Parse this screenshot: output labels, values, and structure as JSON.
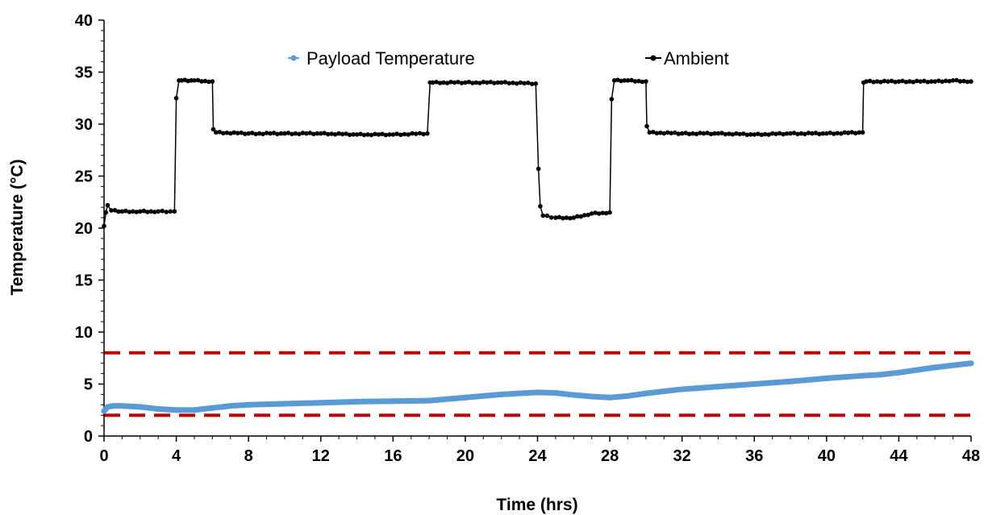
{
  "chart_data": {
    "type": "line",
    "xlabel": "Time (hrs)",
    "ylabel": "Temperature (°C)",
    "xlim": [
      0,
      48
    ],
    "ylim": [
      0,
      40
    ],
    "x_ticks": [
      "0",
      "4",
      "8",
      "12",
      "16",
      "20",
      "24",
      "28",
      "32",
      "36",
      "40",
      "44",
      "48"
    ],
    "y_ticks": [
      "0",
      "5",
      "10",
      "15",
      "20",
      "25",
      "30",
      "35",
      "40"
    ],
    "grid": false,
    "legend_position": "top",
    "reference_lines": [
      {
        "y": 8,
        "color": "#c00000",
        "style": "dashed"
      },
      {
        "y": 2,
        "color": "#c00000",
        "style": "dashed"
      }
    ],
    "series": [
      {
        "name": "Payload Temperature",
        "color": "#5b9bd5",
        "marker": "dot",
        "x": [
          0,
          0.2,
          0.5,
          1,
          2,
          3,
          4,
          5,
          6,
          7,
          8,
          10,
          12,
          14,
          16,
          18,
          20,
          22,
          24,
          25,
          26,
          27,
          28,
          29,
          30,
          32,
          34,
          36,
          38,
          40,
          42,
          43,
          44,
          46,
          48
        ],
        "y": [
          2.4,
          2.8,
          2.9,
          2.9,
          2.8,
          2.6,
          2.5,
          2.5,
          2.7,
          2.9,
          3.0,
          3.1,
          3.2,
          3.3,
          3.35,
          3.4,
          3.7,
          4.0,
          4.2,
          4.15,
          3.95,
          3.8,
          3.7,
          3.85,
          4.1,
          4.5,
          4.75,
          5.0,
          5.25,
          5.55,
          5.8,
          5.9,
          6.1,
          6.6,
          7.0
        ]
      },
      {
        "name": "Ambient",
        "color": "#000000",
        "marker": "circle",
        "x": [
          0,
          0.1,
          0.2,
          0.4,
          1,
          2,
          3,
          3.9,
          4.0,
          4.15,
          4.3,
          5,
          6,
          6.05,
          6.2,
          8,
          10,
          12,
          14,
          16,
          17.9,
          18.05,
          18.2,
          20,
          22,
          23.9,
          24.05,
          24.15,
          24.3,
          25,
          26,
          27,
          28,
          28.1,
          28.25,
          29,
          30,
          30.05,
          30.2,
          32,
          34,
          36,
          38,
          40,
          42,
          42.05,
          42.2,
          44,
          46,
          47,
          48
        ],
        "y": [
          20.2,
          21.5,
          22.2,
          21.7,
          21.6,
          21.6,
          21.6,
          21.6,
          32.5,
          34.2,
          34.2,
          34.2,
          34.1,
          29.5,
          29.2,
          29.1,
          29.1,
          29.1,
          29.0,
          29.0,
          29.1,
          34.0,
          34.0,
          34.0,
          34.0,
          33.9,
          25.7,
          22.1,
          21.2,
          21.0,
          21.0,
          21.4,
          21.5,
          32.4,
          34.2,
          34.2,
          34.1,
          29.8,
          29.2,
          29.1,
          29.1,
          29.0,
          29.1,
          29.1,
          29.2,
          34.0,
          34.1,
          34.1,
          34.1,
          34.2,
          34.1
        ]
      }
    ]
  }
}
